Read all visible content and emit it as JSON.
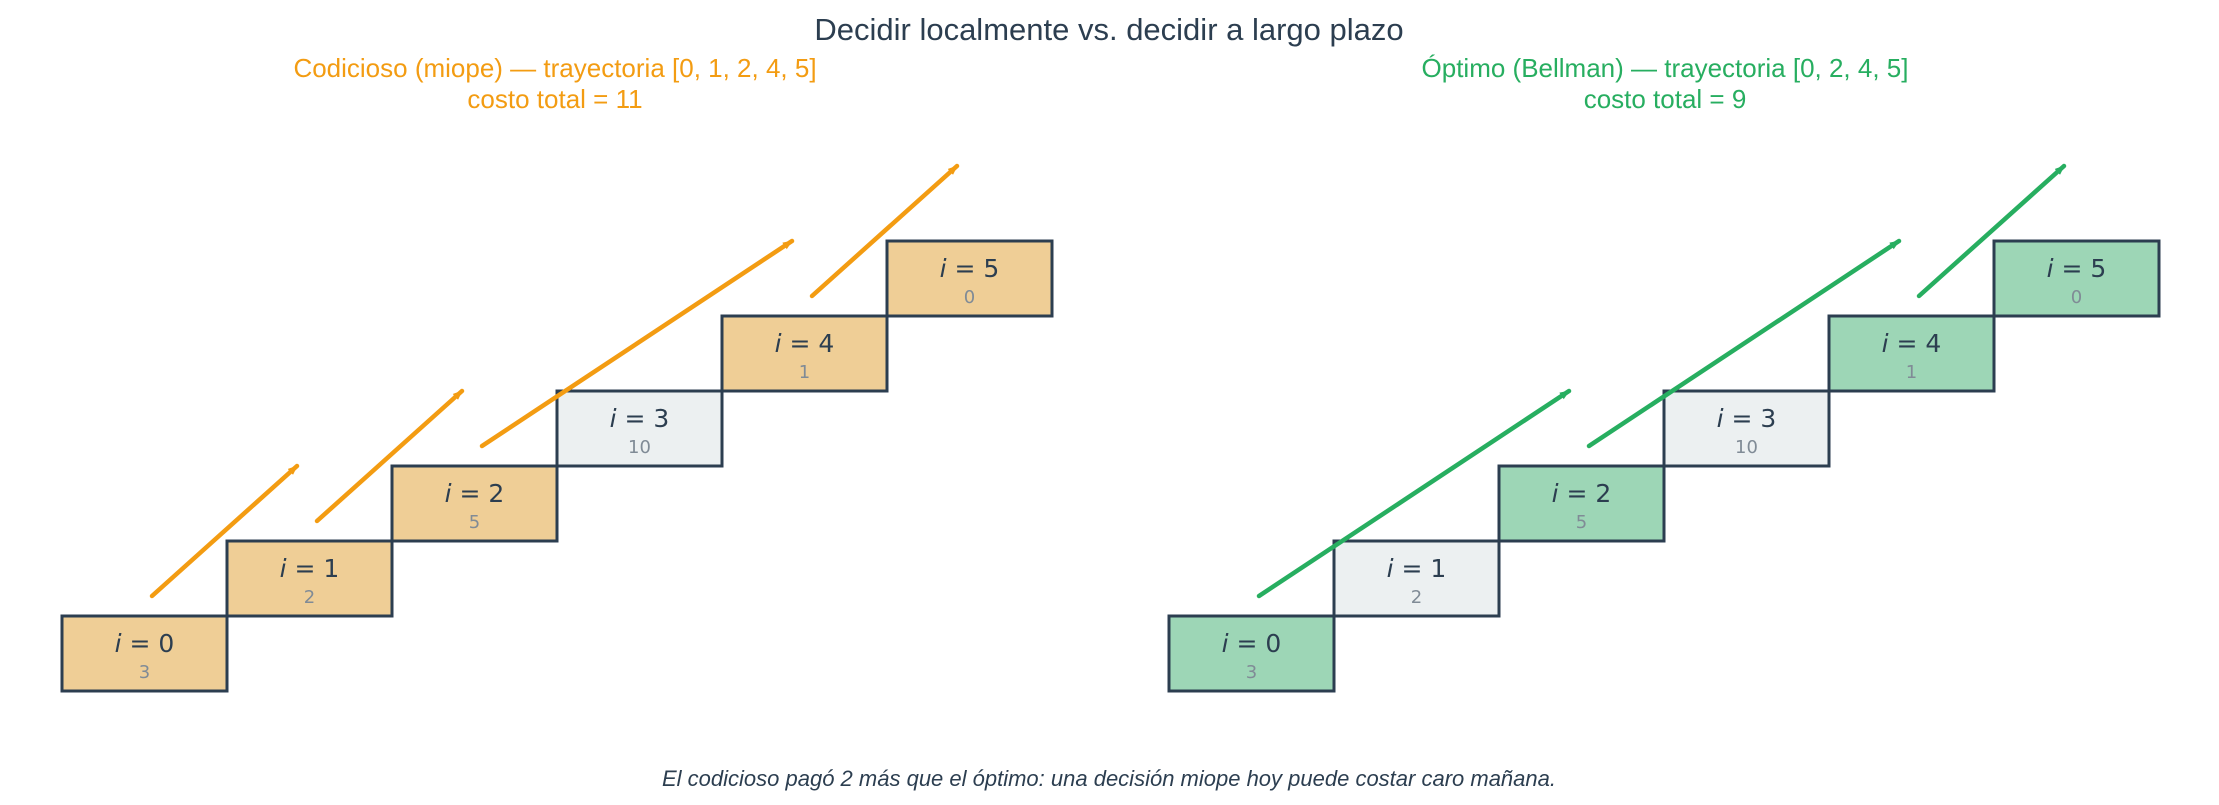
{
  "title": "Decidir localmente vs. decidir a largo plazo",
  "footnote": "El codicioso pagó 2 más que el óptimo: una decisión miope hoy puede costar caro mañana.",
  "colors": {
    "greedy": "#f39c12",
    "greedy_fill": "#efce96",
    "optimal": "#27ae60",
    "optimal_fill": "#9dd6b6",
    "unvisited_fill": "#ecf0f1",
    "border": "#2c3e50",
    "text": "#2c3e50",
    "cost_text": "#808b96"
  },
  "step_prefix": "i",
  "step_eq": " = ",
  "panels": [
    {
      "key": "greedy",
      "title_line1": "Codicioso (miope) — trayectoria [0, 1, 2, 4, 5]",
      "title_line2": "costo total = 11",
      "path": [
        0,
        1,
        2,
        4,
        5
      ]
    },
    {
      "key": "optimal",
      "title_line1": "Óptimo (Bellman) — trayectoria [0, 2, 4, 5]",
      "title_line2": "costo total = 9",
      "path": [
        0,
        2,
        4,
        5
      ]
    }
  ],
  "steps": [
    {
      "index": "0",
      "cost": "3"
    },
    {
      "index": "1",
      "cost": "2"
    },
    {
      "index": "2",
      "cost": "5"
    },
    {
      "index": "3",
      "cost": "10"
    },
    {
      "index": "4",
      "cost": "1"
    },
    {
      "index": "5",
      "cost": "0"
    }
  ]
}
